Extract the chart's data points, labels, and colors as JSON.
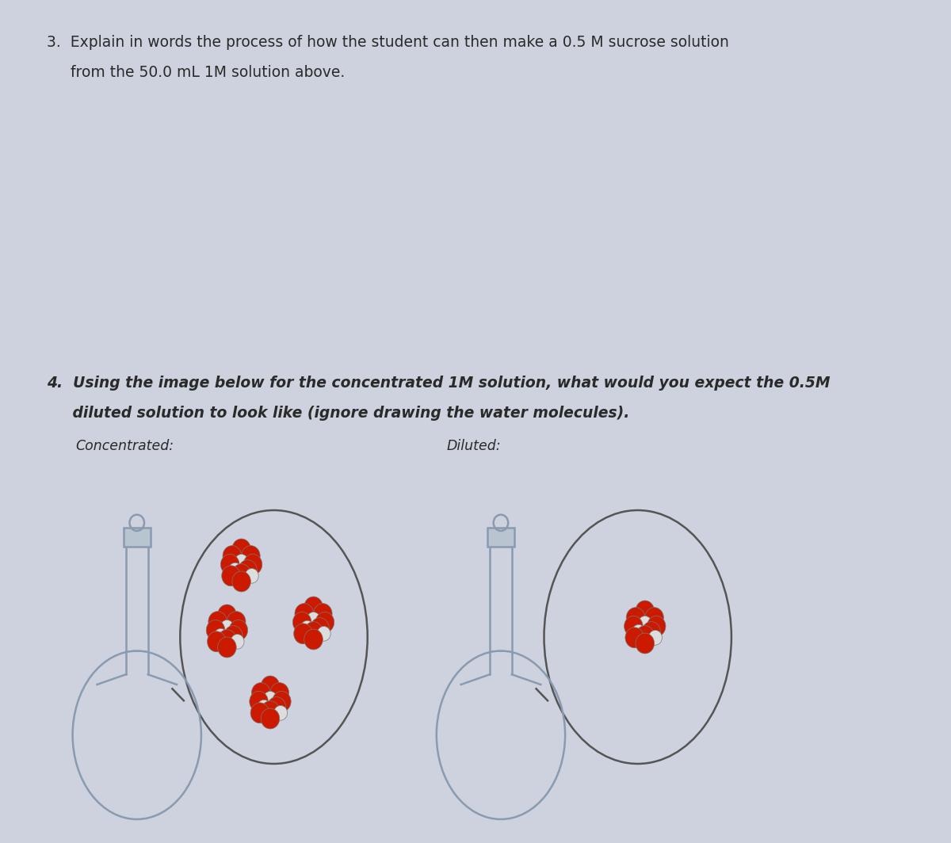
{
  "background_color": "#cdd2de",
  "text_color": "#2a2a2a",
  "q3_line1": "3.  Explain in words the process of how the student can then make a 0.5 M sucrose solution",
  "q3_line2": "     from the 50.0 mL 1M solution above.",
  "q4_line1": "4.  Using the image below for the concentrated 1M solution, what would you expect the 0.5M",
  "q4_line2": "     diluted solution to look like (ignore drawing the water molecules).",
  "concentrated_label": "Concentrated:",
  "diluted_label": "Diluted:",
  "bg": "#cdd2de",
  "flask_edge": "#8a9ab0",
  "flask_fill": "#cdd2de",
  "oval_edge": "#555555",
  "mol_red": "#cc1a00",
  "mol_white": "#dddddd",
  "mol_edge": "#777777"
}
